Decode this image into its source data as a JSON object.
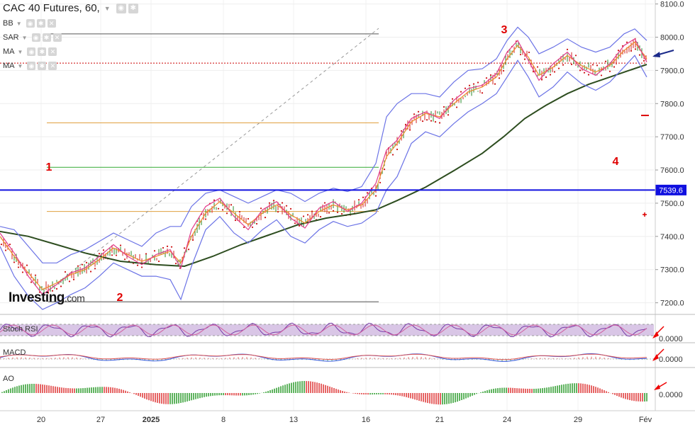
{
  "header": {
    "title": "CAC 40 Futures, 60,",
    "indicators": [
      "BB",
      "SAR",
      "MA",
      "MA"
    ]
  },
  "watermark": {
    "brand": "Investing",
    "suffix": ".com"
  },
  "panes": {
    "stoch": "Stoch RSI",
    "macd": "MACD",
    "ao": "AO"
  },
  "chart_data": {
    "type": "line",
    "price_axis": {
      "ticks": [
        "8100.0",
        "8000.0",
        "7900.0",
        "7800.0",
        "7700.0",
        "7600.0",
        "7500.0",
        "7400.0",
        "7300.0",
        "7200.0"
      ],
      "values": [
        8100,
        8000,
        7900,
        7800,
        7700,
        7600,
        7500,
        7400,
        7300,
        7200
      ],
      "ylim": [
        7165,
        8112
      ]
    },
    "time_axis": {
      "labels": [
        "20",
        "27",
        "2025",
        "8",
        "13",
        "16",
        "21",
        "24",
        "29",
        "Fév"
      ]
    },
    "current_price": {
      "label": "7539.6",
      "value": 7539.6,
      "color": "#1010e0"
    },
    "horizontal_levels": [
      {
        "value": 8010,
        "color": "#555555"
      },
      {
        "value": 7922,
        "color": "#cc0000",
        "style": "dotted"
      },
      {
        "value": 7742,
        "color": "#e0a040"
      },
      {
        "value": 7608,
        "color": "#33aa33"
      },
      {
        "value": 7475,
        "color": "#e0a040"
      },
      {
        "value": 7203,
        "color": "#555555"
      }
    ],
    "annotations": [
      "1",
      "2",
      "3",
      "4"
    ],
    "series": [
      {
        "color": "#2d4d1f",
        "points": [
          [
            0,
            7415
          ],
          [
            40,
            7400
          ],
          [
            80,
            7375
          ],
          [
            120,
            7350
          ],
          [
            170,
            7325
          ],
          [
            220,
            7315
          ],
          [
            260,
            7310
          ],
          [
            300,
            7340
          ],
          [
            340,
            7375
          ],
          [
            380,
            7405
          ],
          [
            420,
            7435
          ],
          [
            460,
            7455
          ],
          [
            500,
            7468
          ],
          [
            530,
            7480
          ],
          [
            560,
            7508
          ],
          [
            600,
            7548
          ],
          [
            640,
            7598
          ],
          [
            680,
            7650
          ],
          [
            710,
            7700
          ],
          [
            740,
            7755
          ],
          [
            770,
            7795
          ],
          [
            800,
            7830
          ],
          [
            830,
            7858
          ],
          [
            860,
            7880
          ],
          [
            890,
            7902
          ],
          [
            912,
            7918
          ]
        ]
      },
      {
        "color": "#ee8a2a",
        "points": [
          [
            0,
            7400
          ],
          [
            20,
            7340
          ],
          [
            40,
            7290
          ],
          [
            60,
            7240
          ],
          [
            80,
            7260
          ],
          [
            100,
            7285
          ],
          [
            120,
            7300
          ],
          [
            140,
            7330
          ],
          [
            160,
            7365
          ],
          [
            180,
            7345
          ],
          [
            200,
            7325
          ],
          [
            220,
            7340
          ],
          [
            240,
            7355
          ],
          [
            255,
            7320
          ],
          [
            270,
            7400
          ],
          [
            290,
            7470
          ],
          [
            310,
            7505
          ],
          [
            330,
            7470
          ],
          [
            350,
            7435
          ],
          [
            370,
            7470
          ],
          [
            390,
            7495
          ],
          [
            410,
            7465
          ],
          [
            430,
            7440
          ],
          [
            450,
            7475
          ],
          [
            470,
            7495
          ],
          [
            490,
            7480
          ],
          [
            510,
            7495
          ],
          [
            530,
            7540
          ],
          [
            545,
            7640
          ],
          [
            560,
            7680
          ],
          [
            580,
            7745
          ],
          [
            600,
            7770
          ],
          [
            620,
            7760
          ],
          [
            640,
            7800
          ],
          [
            660,
            7835
          ],
          [
            680,
            7850
          ],
          [
            700,
            7880
          ],
          [
            715,
            7935
          ],
          [
            730,
            7975
          ],
          [
            745,
            7940
          ],
          [
            760,
            7885
          ],
          [
            780,
            7910
          ],
          [
            800,
            7945
          ],
          [
            820,
            7915
          ],
          [
            840,
            7895
          ],
          [
            860,
            7915
          ],
          [
            880,
            7960
          ],
          [
            895,
            7985
          ],
          [
            912,
            7935
          ]
        ]
      },
      {
        "color": "#e23b8a",
        "points": [
          [
            0,
            7410
          ],
          [
            20,
            7350
          ],
          [
            40,
            7280
          ],
          [
            60,
            7225
          ],
          [
            80,
            7255
          ],
          [
            100,
            7290
          ],
          [
            120,
            7305
          ],
          [
            140,
            7340
          ],
          [
            160,
            7375
          ],
          [
            180,
            7340
          ],
          [
            200,
            7315
          ],
          [
            220,
            7345
          ],
          [
            240,
            7360
          ],
          [
            255,
            7305
          ],
          [
            270,
            7420
          ],
          [
            290,
            7490
          ],
          [
            310,
            7515
          ],
          [
            330,
            7460
          ],
          [
            350,
            7420
          ],
          [
            370,
            7480
          ],
          [
            390,
            7505
          ],
          [
            410,
            7455
          ],
          [
            430,
            7425
          ],
          [
            450,
            7485
          ],
          [
            470,
            7505
          ],
          [
            490,
            7475
          ],
          [
            510,
            7500
          ],
          [
            530,
            7560
          ],
          [
            545,
            7660
          ],
          [
            560,
            7690
          ],
          [
            580,
            7755
          ],
          [
            600,
            7775
          ],
          [
            620,
            7755
          ],
          [
            640,
            7810
          ],
          [
            660,
            7845
          ],
          [
            680,
            7855
          ],
          [
            700,
            7890
          ],
          [
            715,
            7955
          ],
          [
            730,
            7990
          ],
          [
            745,
            7930
          ],
          [
            760,
            7870
          ],
          [
            780,
            7920
          ],
          [
            800,
            7955
          ],
          [
            820,
            7905
          ],
          [
            840,
            7885
          ],
          [
            860,
            7920
          ],
          [
            880,
            7975
          ],
          [
            895,
            7995
          ],
          [
            912,
            7925
          ]
        ]
      },
      {
        "color": "#6b73e6",
        "points": [
          [
            0,
            7430
          ],
          [
            20,
            7420
          ],
          [
            40,
            7370
          ],
          [
            60,
            7320
          ],
          [
            80,
            7320
          ],
          [
            100,
            7345
          ],
          [
            120,
            7360
          ],
          [
            140,
            7385
          ],
          [
            160,
            7410
          ],
          [
            180,
            7390
          ],
          [
            200,
            7370
          ],
          [
            220,
            7410
          ],
          [
            240,
            7430
          ],
          [
            255,
            7430
          ],
          [
            270,
            7490
          ],
          [
            290,
            7530
          ],
          [
            310,
            7540
          ],
          [
            330,
            7520
          ],
          [
            350,
            7500
          ],
          [
            370,
            7520
          ],
          [
            390,
            7540
          ],
          [
            410,
            7530
          ],
          [
            430,
            7505
          ],
          [
            450,
            7530
          ],
          [
            470,
            7545
          ],
          [
            490,
            7535
          ],
          [
            510,
            7550
          ],
          [
            530,
            7620
          ],
          [
            545,
            7760
          ],
          [
            560,
            7800
          ],
          [
            580,
            7830
          ],
          [
            600,
            7830
          ],
          [
            620,
            7820
          ],
          [
            640,
            7865
          ],
          [
            660,
            7900
          ],
          [
            680,
            7905
          ],
          [
            700,
            7935
          ],
          [
            715,
            7990
          ],
          [
            730,
            8030
          ],
          [
            745,
            8000
          ],
          [
            760,
            7950
          ],
          [
            780,
            7970
          ],
          [
            800,
            7995
          ],
          [
            820,
            7970
          ],
          [
            840,
            7955
          ],
          [
            860,
            7970
          ],
          [
            880,
            8010
          ],
          [
            895,
            8025
          ],
          [
            912,
            7990
          ]
        ]
      },
      {
        "color": "#6b73e6",
        "points": [
          [
            0,
            7370
          ],
          [
            20,
            7280
          ],
          [
            40,
            7220
          ],
          [
            60,
            7180
          ],
          [
            80,
            7200
          ],
          [
            100,
            7225
          ],
          [
            120,
            7245
          ],
          [
            140,
            7280
          ],
          [
            160,
            7320
          ],
          [
            180,
            7300
          ],
          [
            200,
            7280
          ],
          [
            220,
            7280
          ],
          [
            240,
            7270
          ],
          [
            255,
            7210
          ],
          [
            270,
            7310
          ],
          [
            290,
            7420
          ],
          [
            310,
            7460
          ],
          [
            330,
            7410
          ],
          [
            350,
            7380
          ],
          [
            370,
            7420
          ],
          [
            390,
            7450
          ],
          [
            410,
            7400
          ],
          [
            430,
            7380
          ],
          [
            450,
            7420
          ],
          [
            470,
            7445
          ],
          [
            490,
            7430
          ],
          [
            510,
            7440
          ],
          [
            530,
            7470
          ],
          [
            545,
            7540
          ],
          [
            560,
            7580
          ],
          [
            580,
            7680
          ],
          [
            600,
            7715
          ],
          [
            620,
            7700
          ],
          [
            640,
            7740
          ],
          [
            660,
            7775
          ],
          [
            680,
            7800
          ],
          [
            700,
            7830
          ],
          [
            715,
            7880
          ],
          [
            730,
            7930
          ],
          [
            745,
            7880
          ],
          [
            760,
            7820
          ],
          [
            780,
            7850
          ],
          [
            800,
            7895
          ],
          [
            820,
            7860
          ],
          [
            840,
            7840
          ],
          [
            860,
            7865
          ],
          [
            880,
            7910
          ],
          [
            895,
            7945
          ],
          [
            912,
            7880
          ]
        ]
      }
    ]
  }
}
